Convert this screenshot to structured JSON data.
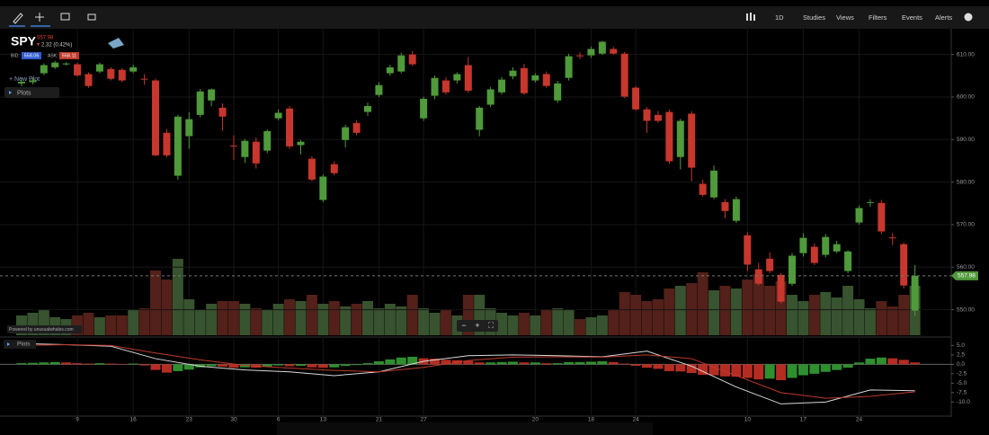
{
  "toolbar": {
    "menus": [
      "1D",
      "Studies",
      "Views",
      "Filters",
      "Events",
      "Alerts"
    ]
  },
  "symbol": {
    "ticker": "SPY",
    "price": "557.98",
    "change": "2.32 (0.42%)",
    "bid_label": "BID:",
    "bid": "558.06",
    "ask_label": "ASK:",
    "ask": "558.11"
  },
  "controls": {
    "new_plot": "+ New Plot",
    "plots": "Plots",
    "powered_by": "Powered by unusualwhales.com",
    "lower_plots": "Plots",
    "zoom_out": "−",
    "zoom_in": "+",
    "fit": "⛶"
  },
  "chart_data": [
    {
      "type": "candlestick",
      "up_color": "#4f9a3a",
      "down_color": "#c8372d",
      "ohlc": [
        [
          603.2,
          604.3,
          602.5,
          603.6
        ],
        [
          603.5,
          604.5,
          603,
          603.9
        ],
        [
          605.6,
          607.9,
          605.2,
          607.5
        ],
        [
          607,
          608.5,
          606.6,
          608.1
        ],
        [
          607.7,
          608.2,
          607.4,
          607.9
        ],
        [
          607.7,
          608.1,
          604.8,
          605.1
        ],
        [
          605.4,
          605.8,
          602.2,
          602.6
        ],
        [
          606,
          608.1,
          605.6,
          607.7
        ],
        [
          606.6,
          607,
          603.9,
          604.3
        ],
        [
          606.4,
          606.8,
          603.5,
          603.9
        ],
        [
          606,
          607.6,
          605.6,
          607
        ],
        [
          604.3,
          605.4,
          602.9,
          604.2
        ],
        [
          603.9,
          604.3,
          586.1,
          586.3
        ],
        [
          591.6,
          592.5,
          585.8,
          586.3
        ],
        [
          581.5,
          595.8,
          580.6,
          595.4
        ],
        [
          590.8,
          596.5,
          587.8,
          594.8
        ],
        [
          595.8,
          601.9,
          595.2,
          601.3
        ],
        [
          599.2,
          602,
          597.8,
          601.8
        ],
        [
          597.5,
          598.5,
          592.1,
          595.4
        ],
        [
          588.6,
          591,
          585.2,
          588.4
        ],
        [
          585.9,
          590.2,
          584.5,
          589.7
        ],
        [
          589.5,
          590.5,
          583.2,
          584.4
        ],
        [
          587.4,
          592.4,
          586.8,
          592
        ],
        [
          595,
          597.1,
          594.5,
          596.3
        ],
        [
          597.3,
          597.9,
          587.8,
          588.4
        ],
        [
          588.7,
          589.9,
          586.5,
          589.5
        ],
        [
          585.5,
          586.1,
          580.2,
          580.6
        ],
        [
          575.8,
          581.8,
          575.3,
          581.3
        ],
        [
          584.2,
          584.9,
          581.6,
          582.1
        ],
        [
          589.9,
          593.5,
          588.2,
          592.9
        ],
        [
          593.9,
          594.6,
          591,
          591.6
        ],
        [
          596.5,
          598.7,
          595.6,
          597.9
        ],
        [
          600.5,
          603.5,
          600,
          602.8
        ],
        [
          605.6,
          607.6,
          605,
          607
        ],
        [
          606,
          610.4,
          605.6,
          609.8
        ],
        [
          610,
          610.8,
          607.3,
          607.7
        ],
        [
          595,
          600.1,
          594.4,
          599.6
        ],
        [
          600.3,
          605.1,
          599.5,
          604.5
        ],
        [
          603.9,
          604.6,
          600.6,
          601.1
        ],
        [
          603.9,
          605.8,
          603.2,
          605.4
        ],
        [
          607.5,
          609.4,
          601,
          601.5
        ],
        [
          592.3,
          597.9,
          590.8,
          597.5
        ],
        [
          598.2,
          602.4,
          597.6,
          601.8
        ],
        [
          601.1,
          604.7,
          600.6,
          604.1
        ],
        [
          604.9,
          607,
          604.2,
          606.2
        ],
        [
          606.8,
          607.8,
          600.5,
          600.9
        ],
        [
          603.9,
          605.6,
          603.4,
          605.1
        ],
        [
          605.4,
          606,
          602.2,
          602.6
        ],
        [
          599.2,
          603.8,
          598.6,
          603.2
        ],
        [
          604.5,
          610.2,
          603.9,
          609.6
        ],
        [
          609.8,
          610.5,
          609,
          609.7
        ],
        [
          609.8,
          611.9,
          609.2,
          611.3
        ],
        [
          610.2,
          613.2,
          609.9,
          613
        ],
        [
          611.3,
          611.8,
          610,
          610.2
        ],
        [
          610.2,
          610.6,
          599.8,
          600.1
        ],
        [
          602.2,
          602.6,
          596.8,
          597.1
        ],
        [
          597.1,
          597.6,
          591.6,
          594.4
        ],
        [
          595.8,
          596.7,
          594,
          594.4
        ],
        [
          596.5,
          597.1,
          584.3,
          584.9
        ],
        [
          585.9,
          594.9,
          583,
          594.4
        ],
        [
          596.1,
          596.7,
          580.2,
          583.4
        ],
        [
          579.6,
          580.6,
          576.6,
          577
        ],
        [
          576.4,
          583.9,
          576,
          582.7
        ],
        [
          575.3,
          576,
          571.5,
          573.2
        ],
        [
          570.9,
          576.6,
          570.4,
          576
        ],
        [
          567.5,
          568.2,
          559.1,
          560.6
        ],
        [
          559.5,
          561,
          555.7,
          556.1
        ],
        [
          562,
          563.5,
          558.6,
          559.1
        ],
        [
          558.2,
          558.6,
          551.5,
          551.9
        ],
        [
          556.1,
          563.3,
          555.6,
          562.7
        ],
        [
          563.3,
          568,
          562.5,
          566.9
        ],
        [
          564.8,
          565.6,
          560.5,
          561
        ],
        [
          562.9,
          567.8,
          562.3,
          567.1
        ],
        [
          563.7,
          566.2,
          563.3,
          565.4
        ],
        [
          559.1,
          564,
          558.6,
          563.7
        ],
        [
          570.5,
          574.5,
          570,
          573.9
        ],
        [
          575.2,
          576,
          574.2,
          575.3
        ],
        [
          575.1,
          575.8,
          567.8,
          568.4
        ],
        [
          567,
          568,
          565.2,
          566.9
        ],
        [
          565.4,
          565.8,
          555,
          555.7
        ],
        [
          549.8,
          560.5,
          548.5,
          557.98
        ]
      ],
      "xlim": [
        -1.93,
        83.25
      ],
      "ylim": [
        544,
        615
      ],
      "yticks": [
        {
          "value": 550,
          "label": "550.00"
        },
        {
          "value": 560,
          "label": "560.00"
        },
        {
          "value": 570,
          "label": "570.00"
        },
        {
          "value": 580,
          "label": "580.00"
        },
        {
          "value": 590,
          "label": "590.00"
        },
        {
          "value": 600,
          "label": "600.00"
        },
        {
          "value": 610,
          "label": "610.00"
        }
      ],
      "xticks": [
        {
          "value": 5,
          "label": "9"
        },
        {
          "value": 10,
          "label": "16"
        },
        {
          "value": 15,
          "label": "23"
        },
        {
          "value": 19,
          "label": "30"
        },
        {
          "value": 23,
          "label": "6"
        },
        {
          "value": 27,
          "label": "13"
        },
        {
          "value": 32,
          "label": "21"
        },
        {
          "value": 36,
          "label": "27"
        },
        {
          "value": 46,
          "label": "20"
        },
        {
          "value": 51,
          "label": "18"
        },
        {
          "value": 55,
          "label": "24"
        },
        {
          "value": 65,
          "label": "10"
        },
        {
          "value": 70,
          "label": "17"
        },
        {
          "value": 75,
          "label": "24"
        }
      ],
      "last_price": 557.98,
      "last_color": "#4f9a3a",
      "grid": true
    },
    {
      "type": "bar",
      "up_color": "#3e5c34",
      "down_color": "#5c231d",
      "ylim": [
        0,
        86
      ],
      "values": [
        22,
        25,
        28,
        20,
        18,
        22,
        25,
        20,
        22,
        22,
        28,
        30,
        72,
        62,
        85,
        40,
        28,
        35,
        38,
        38,
        35,
        30,
        28,
        35,
        40,
        38,
        45,
        35,
        38,
        32,
        35,
        38,
        30,
        35,
        32,
        45,
        30,
        25,
        28,
        22,
        45,
        45,
        30,
        25,
        22,
        25,
        22,
        28,
        30,
        28,
        18,
        20,
        22,
        28,
        48,
        45,
        38,
        40,
        52,
        55,
        58,
        70,
        50,
        55,
        52,
        62,
        68,
        55,
        60,
        45,
        38,
        45,
        48,
        42,
        55,
        40,
        30,
        38,
        32,
        45,
        55
      ]
    },
    {
      "type": "macd",
      "up_color": "#2f8f2f",
      "down_color": "#b52d22",
      "ylim": [
        -13.5,
        7
      ],
      "yticks": [
        {
          "value": 5,
          "label": "5.0"
        },
        {
          "value": 2.5,
          "label": "2.5"
        },
        {
          "value": 0,
          "label": "0.0"
        },
        {
          "value": -2.5,
          "label": "-2.5"
        },
        {
          "value": -5,
          "label": "-5.0"
        },
        {
          "value": -7.5,
          "label": "-7.5"
        },
        {
          "value": -10,
          "label": "-10.0"
        }
      ],
      "histogram": [
        0.3,
        0.4,
        0.5,
        0.6,
        0.5,
        0.3,
        0.2,
        0.3,
        0.2,
        0.1,
        0.2,
        -0.3,
        -1.5,
        -2.2,
        -1.8,
        -1.4,
        -0.8,
        -0.5,
        -0.6,
        -0.9,
        -0.8,
        -0.9,
        -0.6,
        -0.3,
        -0.5,
        -0.4,
        -0.8,
        -0.9,
        -0.8,
        -0.4,
        -0.2,
        0.3,
        0.8,
        1.3,
        1.8,
        2,
        1.6,
        1.5,
        1.2,
        1.1,
        0.9,
        0.5,
        0.5,
        0.6,
        0.7,
        0.5,
        0.5,
        0.3,
        0.3,
        0.6,
        0.6,
        0.7,
        0.8,
        0.6,
        0.2,
        -0.4,
        -0.9,
        -1.2,
        -1.8,
        -1.9,
        -2.3,
        -2.8,
        -2.9,
        -3.2,
        -3.3,
        -3.6,
        -4,
        -3.8,
        -4.2,
        -3.6,
        -2.9,
        -2.5,
        -2,
        -1.5,
        -0.9,
        0.5,
        1.5,
        1.8,
        1.6,
        1.2,
        0.5
      ],
      "x": [
        0,
        4,
        8,
        12,
        16,
        20,
        24,
        28,
        32,
        36,
        40,
        44,
        48,
        52,
        56,
        60,
        64,
        68,
        72,
        76,
        80
      ],
      "lines": [
        {
          "color": "#d8d8d8",
          "values": [
            5.5,
            5.2,
            4.8,
            1.5,
            -0.5,
            -1.5,
            -2,
            -3,
            -2,
            0.8,
            2.3,
            2.5,
            2.3,
            2,
            3.5,
            -0.5,
            -6,
            -10.5,
            -10,
            -6.8,
            -7
          ]
        },
        {
          "color": "#c0392b",
          "values": [
            5,
            5.2,
            5,
            3,
            1.2,
            -0.3,
            -1,
            -1.6,
            -2,
            -0.8,
            1,
            1.9,
            2,
            1.9,
            2.5,
            1.5,
            -3,
            -7.5,
            -9,
            -8.5,
            -7.3
          ]
        }
      ]
    }
  ]
}
